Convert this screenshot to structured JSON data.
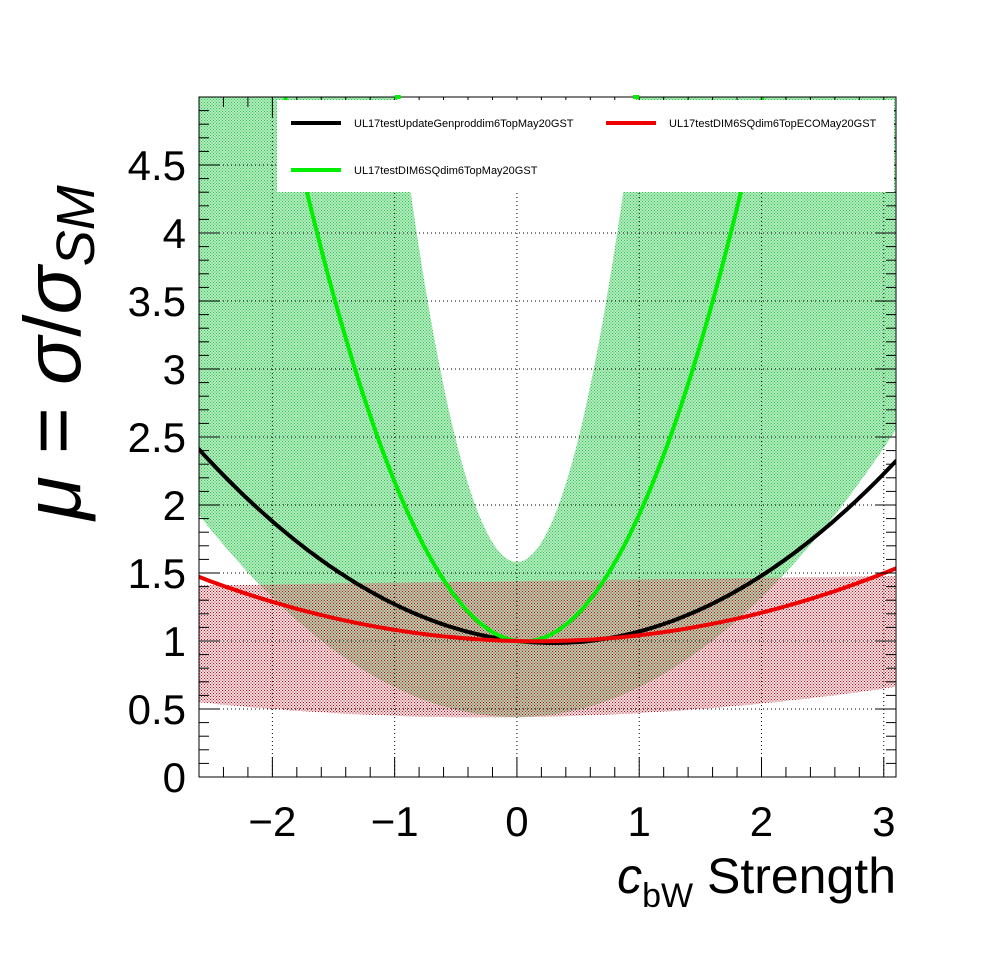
{
  "chart_data": {
    "type": "line",
    "title": "",
    "xlabel": {
      "prefix": "c",
      "subscript": "bW",
      "suffix": " Strength"
    },
    "ylabel": {
      "mu": "μ",
      "equals": " = ",
      "sigma": "σ",
      "slash": "/",
      "sigma2": "σ",
      "subscript": "SM"
    },
    "xlim": [
      -2.6,
      3.1
    ],
    "ylim": [
      0,
      5.0
    ],
    "x_ticks": [
      -2,
      -1,
      0,
      1,
      2,
      3
    ],
    "x_tick_labels": [
      "−2",
      "−1",
      "0",
      "1",
      "2",
      "3"
    ],
    "y_ticks": [
      0,
      0.5,
      1,
      1.5,
      2,
      2.5,
      3,
      3.5,
      4,
      4.5
    ],
    "y_tick_labels": [
      "0",
      "0.5",
      "1",
      "1.5",
      "2",
      "2.5",
      "3",
      "3.5",
      "4",
      "4.5"
    ],
    "grid": true,
    "legend_position": "top",
    "series": [
      {
        "name": "UL17testUpdateGenproddim6TopMay20GST",
        "color": "#000000",
        "quadratic": [
          1.0,
          -0.1,
          0.17
        ]
      },
      {
        "name": "UL17testDIM6SQdim6TopECOMay20GST",
        "color": "#ee0000",
        "quadratic": [
          1.0,
          -0.02,
          0.062
        ],
        "band": {
          "color": "#b50c1a",
          "lower_quadratic": [
            0.44,
            0.01,
            0.02
          ],
          "upper_quadratic": [
            1.44,
            0.012,
            0.0
          ]
        }
      },
      {
        "name": "UL17testDIM6SQdim6TopMay20GST",
        "color": "#00ee00",
        "quadratic": [
          1.0,
          -0.12,
          1.05
        ],
        "band": {
          "color": "#2cc44a",
          "lower_quadratic": [
            0.44,
            0.0,
            0.22
          ],
          "upper_quadratic": [
            1.58,
            0.0,
            3.6
          ]
        }
      }
    ]
  }
}
